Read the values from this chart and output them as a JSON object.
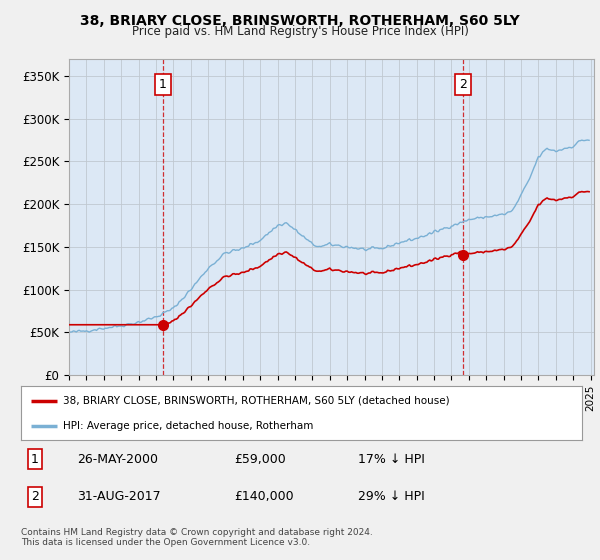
{
  "title": "38, BRIARY CLOSE, BRINSWORTH, ROTHERHAM, S60 5LY",
  "subtitle": "Price paid vs. HM Land Registry's House Price Index (HPI)",
  "ylabel_ticks": [
    "£0",
    "£50K",
    "£100K",
    "£150K",
    "£200K",
    "£250K",
    "£300K",
    "£350K"
  ],
  "ytick_values": [
    0,
    50000,
    100000,
    150000,
    200000,
    250000,
    300000,
    350000
  ],
  "ylim": [
    0,
    370000
  ],
  "hpi_color": "#7ab0d4",
  "price_color": "#cc0000",
  "vline_color": "#cc0000",
  "background_color": "#f0f0f0",
  "plot_bg": "#dce8f5",
  "transaction1": {
    "date": "26-MAY-2000",
    "price": 59000,
    "label": "1",
    "pct": "17% ↓ HPI",
    "year": 2000.4
  },
  "transaction2": {
    "date": "31-AUG-2017",
    "price": 140000,
    "label": "2",
    "pct": "29% ↓ HPI",
    "year": 2017.67
  },
  "legend_line1": "38, BRIARY CLOSE, BRINSWORTH, ROTHERHAM, S60 5LY (detached house)",
  "legend_line2": "HPI: Average price, detached house, Rotherham",
  "footer": "Contains HM Land Registry data © Crown copyright and database right 2024.\nThis data is licensed under the Open Government Licence v3.0.",
  "hpi_anchors_years": [
    1995.0,
    1996.0,
    1997.0,
    1998.0,
    1999.0,
    2000.0,
    2001.0,
    2002.0,
    2003.0,
    2004.0,
    2005.0,
    2006.0,
    2007.0,
    2007.5,
    2008.0,
    2009.0,
    2009.5,
    2010.0,
    2011.0,
    2012.0,
    2013.0,
    2014.0,
    2015.0,
    2016.0,
    2017.0,
    2017.5,
    2018.0,
    2019.0,
    2020.0,
    2020.5,
    2021.0,
    2021.5,
    2022.0,
    2022.5,
    2023.0,
    2023.5,
    2024.0,
    2024.5
  ],
  "hpi_anchors_vals": [
    50000,
    52000,
    55000,
    58000,
    62000,
    68000,
    78000,
    100000,
    125000,
    143000,
    148000,
    158000,
    175000,
    178000,
    170000,
    153000,
    150000,
    153000,
    150000,
    147000,
    148000,
    155000,
    160000,
    167000,
    175000,
    178000,
    182000,
    185000,
    188000,
    192000,
    210000,
    230000,
    255000,
    265000,
    262000,
    265000,
    268000,
    275000
  ],
  "price1": 59000,
  "price2": 140000,
  "t1_year": 2000.4,
  "t2_year": 2017.67
}
